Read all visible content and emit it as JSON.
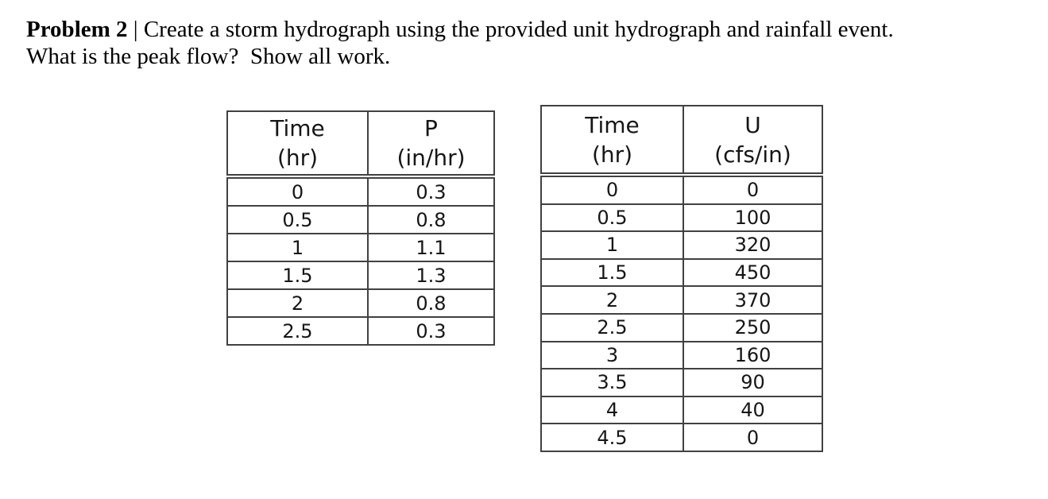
{
  "problem": {
    "label": "Problem 2",
    "separator": "|",
    "statement_line1": "Create a storm hydrograph using the provided unit hydrograph and rainfall event.",
    "statement_line2": "What is the peak flow?  Show all work."
  },
  "rainfall_table": {
    "headers": [
      {
        "line1": "Time",
        "line2": "(hr)"
      },
      {
        "line1": "P",
        "line2": "(in/hr)"
      }
    ],
    "rows": [
      [
        "0",
        "0.3"
      ],
      [
        "0.5",
        "0.8"
      ],
      [
        "1",
        "1.1"
      ],
      [
        "1.5",
        "1.3"
      ],
      [
        "2",
        "0.8"
      ],
      [
        "2.5",
        "0.3"
      ]
    ]
  },
  "unit_table": {
    "headers": [
      {
        "line1": "Time",
        "line2": "(hr)"
      },
      {
        "line1": "U",
        "line2": "(cfs/in)"
      }
    ],
    "rows": [
      [
        "0",
        "0"
      ],
      [
        "0.5",
        "100"
      ],
      [
        "1",
        "320"
      ],
      [
        "1.5",
        "450"
      ],
      [
        "2",
        "370"
      ],
      [
        "2.5",
        "250"
      ],
      [
        "3",
        "160"
      ],
      [
        "3.5",
        "90"
      ],
      [
        "4",
        "40"
      ],
      [
        "4.5",
        "0"
      ]
    ]
  },
  "colors": {
    "background": "#ffffff",
    "text": "#161616",
    "table_border": "#414141"
  }
}
